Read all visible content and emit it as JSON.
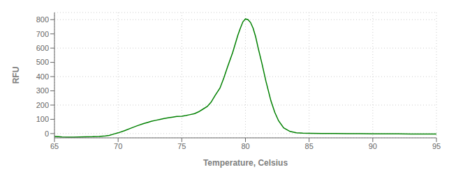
{
  "chart_data": {
    "type": "line",
    "xlabel": "Temperature, Celsius",
    "ylabel": "RFU",
    "x": [
      65,
      65.3,
      65.6,
      66,
      66.5,
      67,
      67.5,
      68,
      68.5,
      69,
      69.3,
      69.6,
      70,
      70.5,
      71,
      71.5,
      72,
      72.3,
      72.6,
      73,
      73.3,
      73.6,
      74,
      74.3,
      74.6,
      75,
      75.3,
      75.6,
      76,
      76.3,
      76.6,
      77,
      77.3,
      77.6,
      78,
      78.3,
      78.6,
      79,
      79.2,
      79.4,
      79.6,
      79.8,
      80,
      80.2,
      80.4,
      80.6,
      80.8,
      81,
      81.3,
      81.6,
      82,
      82.3,
      82.6,
      83,
      83.5,
      84,
      84.5,
      85,
      86,
      87,
      88,
      89,
      90,
      91,
      92,
      93,
      94,
      95
    ],
    "values": [
      -20,
      -22,
      -24,
      -25,
      -25,
      -24,
      -23,
      -22,
      -20,
      -17,
      -13,
      -5,
      5,
      20,
      38,
      55,
      70,
      78,
      86,
      94,
      100,
      106,
      112,
      116,
      120,
      122,
      126,
      132,
      140,
      152,
      168,
      190,
      220,
      265,
      320,
      390,
      470,
      570,
      630,
      690,
      740,
      785,
      805,
      800,
      780,
      740,
      680,
      600,
      490,
      370,
      230,
      150,
      90,
      40,
      15,
      6,
      3,
      2,
      1,
      0,
      -1,
      -1,
      -2,
      -2,
      -2,
      -3,
      -3,
      -3
    ],
    "color": "#008000",
    "xlim": [
      65,
      95
    ],
    "ylim": [
      -30,
      850
    ],
    "xticks": [
      65,
      70,
      75,
      80,
      85,
      90,
      95
    ],
    "yticks": [
      0,
      100,
      200,
      300,
      400,
      500,
      600,
      700,
      800
    ],
    "grid": true
  }
}
